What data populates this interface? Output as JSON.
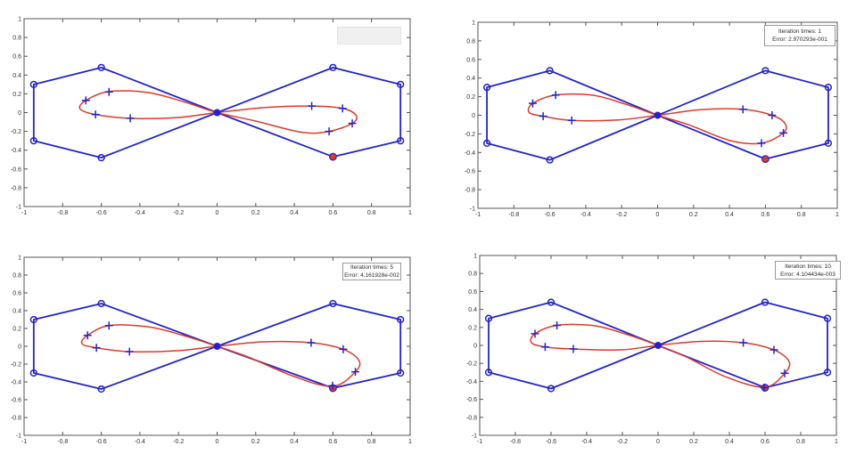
{
  "colors": {
    "background": "#ffffff",
    "polygon_blue": "#2323cd",
    "curve_red": "#dc3b2a",
    "axis": "#555555",
    "tick_label": "#333333",
    "annotation_border": "#9a9a9a",
    "annotation_bg": "#ffffff",
    "empty_annotation_bg": "#f0f0f0"
  },
  "chart_data": {
    "type": "line",
    "layout": "2x2 subplots",
    "title": "",
    "xlabel": "",
    "ylabel": "",
    "grid": false,
    "xlim": [
      -1,
      1
    ],
    "ylim": [
      -1,
      1
    ],
    "xticks": [
      -1,
      -0.8,
      -0.6,
      -0.4,
      -0.2,
      0,
      0.2,
      0.4,
      0.6,
      0.8,
      1
    ],
    "yticks": [
      -1,
      -0.8,
      -0.6,
      -0.4,
      -0.2,
      0,
      0.2,
      0.4,
      0.6,
      0.8,
      1
    ],
    "xtick_labels": [
      "-1",
      "-0.8",
      "-0.6",
      "-0.4",
      "-0.2",
      "0",
      "0.2",
      "0.4",
      "0.6",
      "0.8",
      "1"
    ],
    "ytick_labels": [
      "-1",
      "-0.8",
      "-0.6",
      "-0.4",
      "-0.2",
      "0",
      "0.2",
      "0.4",
      "0.6",
      "0.8",
      "1"
    ],
    "control_polygon": {
      "closed": true,
      "path": [
        [
          0,
          0
        ],
        [
          0.6,
          0.48
        ],
        [
          0.95,
          0.3
        ],
        [
          0.95,
          -0.3
        ],
        [
          0.6,
          -0.47
        ],
        [
          0,
          0
        ],
        [
          -0.6,
          0.48
        ],
        [
          -0.95,
          0.3
        ],
        [
          -0.95,
          -0.3
        ],
        [
          -0.6,
          -0.48
        ]
      ],
      "circle_markers": [
        [
          -0.95,
          0.3
        ],
        [
          -0.6,
          0.48
        ],
        [
          0.6,
          0.48
        ],
        [
          0.95,
          0.3
        ],
        [
          0.95,
          -0.3
        ],
        [
          0.6,
          -0.47
        ],
        [
          -0.6,
          -0.48
        ],
        [
          -0.95,
          -0.3
        ]
      ],
      "center_marker": [
        0,
        0
      ],
      "highlight_marker": [
        0.6,
        -0.47
      ]
    },
    "subplots": [
      {
        "name": "initial",
        "annotation": null,
        "curve": [
          [
            0,
            0
          ],
          [
            -0.18,
            0.12
          ],
          [
            -0.36,
            0.215
          ],
          [
            -0.56,
            0.225
          ],
          [
            -0.68,
            0.13
          ],
          [
            -0.71,
            0.04
          ],
          [
            -0.63,
            -0.02
          ],
          [
            -0.45,
            -0.06
          ],
          [
            -0.22,
            -0.055
          ],
          [
            0,
            0
          ],
          [
            0.25,
            0.055
          ],
          [
            0.49,
            0.07
          ],
          [
            0.65,
            0.045
          ],
          [
            0.72,
            -0.03
          ],
          [
            0.7,
            -0.115
          ],
          [
            0.58,
            -0.2
          ],
          [
            0.44,
            -0.21
          ],
          [
            0.2,
            -0.09
          ]
        ],
        "plus_markers": [
          [
            -0.56,
            0.22
          ],
          [
            -0.68,
            0.13
          ],
          [
            -0.63,
            -0.02
          ],
          [
            -0.45,
            -0.06
          ],
          [
            0.49,
            0.07
          ],
          [
            0.65,
            0.045
          ],
          [
            0.7,
            -0.115
          ],
          [
            0.58,
            -0.2
          ]
        ]
      },
      {
        "name": "iteration-1",
        "annotation": {
          "line1": "Iteration times: 1",
          "line2": "Error: 2.970293e-001",
          "iteration": 1,
          "error": "2.970293e-001"
        },
        "curve": [
          [
            0,
            0
          ],
          [
            -0.18,
            0.12
          ],
          [
            -0.36,
            0.215
          ],
          [
            -0.567,
            0.218
          ],
          [
            -0.695,
            0.128
          ],
          [
            -0.715,
            0.03
          ],
          [
            -0.637,
            -0.01
          ],
          [
            -0.478,
            -0.055
          ],
          [
            -0.22,
            -0.05
          ],
          [
            0,
            0
          ],
          [
            0.24,
            0.06
          ],
          [
            0.475,
            0.064
          ],
          [
            0.637,
            0
          ],
          [
            0.71,
            -0.09
          ],
          [
            0.7,
            -0.19
          ],
          [
            0.578,
            -0.3
          ],
          [
            0.4,
            -0.27
          ],
          [
            0.17,
            -0.1
          ]
        ],
        "plus_markers": [
          [
            -0.567,
            0.218
          ],
          [
            -0.695,
            0.128
          ],
          [
            -0.637,
            -0.01
          ],
          [
            -0.478,
            -0.055
          ],
          [
            0.475,
            0.064
          ],
          [
            0.637,
            0
          ],
          [
            0.7,
            -0.19
          ],
          [
            0.578,
            -0.3
          ]
        ]
      },
      {
        "name": "iteration-5",
        "annotation": {
          "line1": "Iteration times: 5",
          "line2": "Error: 4.161928e-002",
          "iteration": 5,
          "error": "4.161928e-002"
        },
        "curve": [
          [
            0,
            0
          ],
          [
            -0.18,
            0.125
          ],
          [
            -0.36,
            0.22
          ],
          [
            -0.56,
            0.233
          ],
          [
            -0.671,
            0.123
          ],
          [
            -0.7,
            0.03
          ],
          [
            -0.625,
            -0.017
          ],
          [
            -0.454,
            -0.06
          ],
          [
            -0.21,
            -0.05
          ],
          [
            0,
            0
          ],
          [
            0.24,
            0.05
          ],
          [
            0.487,
            0.04
          ],
          [
            0.653,
            -0.033
          ],
          [
            0.735,
            -0.16
          ],
          [
            0.716,
            -0.287
          ],
          [
            0.6,
            -0.45
          ],
          [
            0.4,
            -0.34
          ],
          [
            0.16,
            -0.12
          ]
        ],
        "plus_markers": [
          [
            -0.56,
            0.233
          ],
          [
            -0.671,
            0.123
          ],
          [
            -0.625,
            -0.017
          ],
          [
            -0.454,
            -0.06
          ],
          [
            0.487,
            0.04
          ],
          [
            0.653,
            -0.033
          ],
          [
            0.716,
            -0.287
          ],
          [
            0.598,
            -0.443
          ]
        ]
      },
      {
        "name": "iteration-10",
        "annotation": {
          "line1": "Iteration times: 10",
          "line2": "Error: 4.104434e-003",
          "iteration": 10,
          "error": "4.104434e-003"
        },
        "curve": [
          [
            0,
            0
          ],
          [
            -0.18,
            0.125
          ],
          [
            -0.36,
            0.22
          ],
          [
            -0.567,
            0.223
          ],
          [
            -0.69,
            0.13
          ],
          [
            -0.71,
            0.03
          ],
          [
            -0.633,
            -0.017
          ],
          [
            -0.475,
            -0.04
          ],
          [
            -0.21,
            -0.05
          ],
          [
            0,
            0
          ],
          [
            0.24,
            0.045
          ],
          [
            0.478,
            0.03
          ],
          [
            0.65,
            -0.05
          ],
          [
            0.735,
            -0.18
          ],
          [
            0.71,
            -0.31
          ],
          [
            0.598,
            -0.465
          ],
          [
            0.38,
            -0.35
          ],
          [
            0.16,
            -0.13
          ]
        ],
        "plus_markers": [
          [
            -0.567,
            0.223
          ],
          [
            -0.69,
            0.13
          ],
          [
            -0.633,
            -0.017
          ],
          [
            -0.475,
            -0.04
          ],
          [
            0.478,
            0.03
          ],
          [
            0.65,
            -0.05
          ],
          [
            0.71,
            -0.31
          ],
          [
            0.595,
            -0.47
          ]
        ]
      }
    ]
  }
}
